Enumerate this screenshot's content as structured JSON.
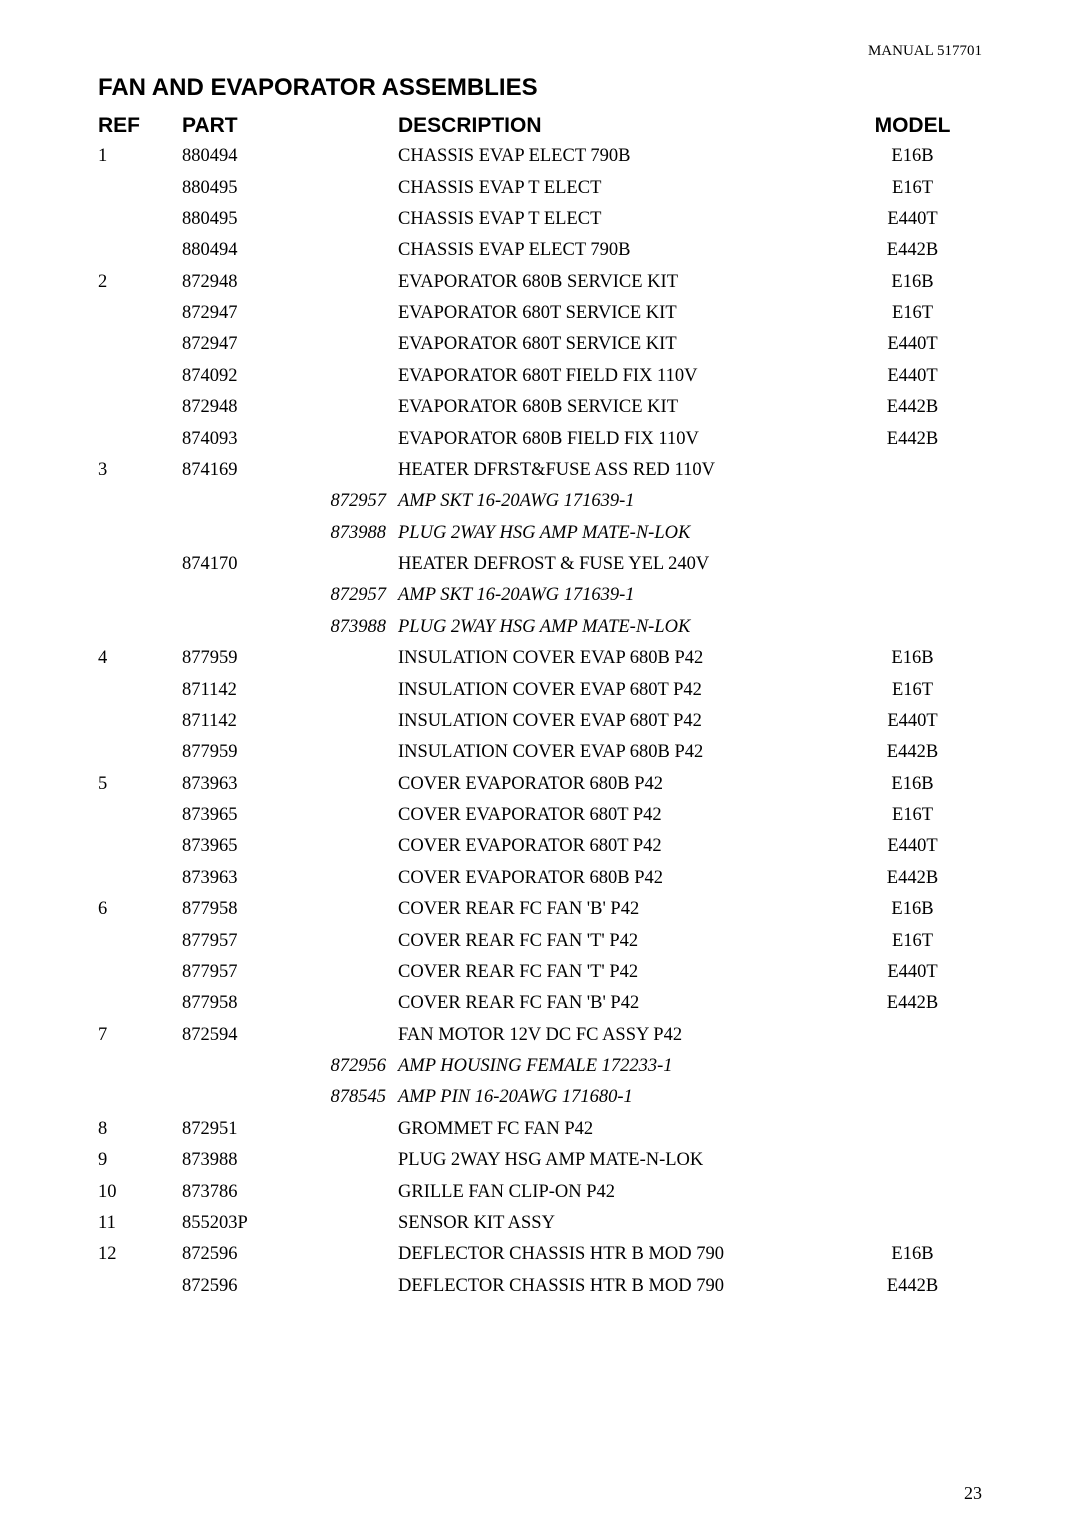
{
  "manual_header": "MANUAL 517701",
  "title": "FAN AND EVAPORATOR ASSEMBLIES",
  "columns": {
    "ref": "REF",
    "part": "PART",
    "desc": "DESCRIPTION",
    "model": "MODEL"
  },
  "page_number": "23",
  "rows": [
    {
      "ref": "1",
      "part": "880494",
      "sub": "",
      "desc": "CHASSIS EVAP ELECT 790B",
      "italic": false,
      "model": "E16B"
    },
    {
      "ref": "",
      "part": "880495",
      "sub": "",
      "desc": "CHASSIS EVAP T ELECT",
      "italic": false,
      "model": "E16T"
    },
    {
      "ref": "",
      "part": "880495",
      "sub": "",
      "desc": "CHASSIS EVAP T ELECT",
      "italic": false,
      "model": "E440T"
    },
    {
      "ref": "",
      "part": "880494",
      "sub": "",
      "desc": "CHASSIS EVAP ELECT 790B",
      "italic": false,
      "model": "E442B"
    },
    {
      "ref": "2",
      "part": "872948",
      "sub": "",
      "desc": "EVAPORATOR 680B SERVICE KIT",
      "italic": false,
      "model": "E16B"
    },
    {
      "ref": "",
      "part": "872947",
      "sub": "",
      "desc": "EVAPORATOR 680T SERVICE KIT",
      "italic": false,
      "model": "E16T"
    },
    {
      "ref": "",
      "part": "872947",
      "sub": "",
      "desc": "EVAPORATOR 680T SERVICE KIT",
      "italic": false,
      "model": "E440T"
    },
    {
      "ref": "",
      "part": "874092",
      "sub": "",
      "desc": "EVAPORATOR 680T FIELD FIX 110V",
      "italic": false,
      "model": "E440T"
    },
    {
      "ref": "",
      "part": "872948",
      "sub": "",
      "desc": "EVAPORATOR 680B SERVICE KIT",
      "italic": false,
      "model": "E442B"
    },
    {
      "ref": "",
      "part": "874093",
      "sub": "",
      "desc": "EVAPORATOR 680B FIELD FIX 110V",
      "italic": false,
      "model": "E442B"
    },
    {
      "ref": "3",
      "part": "874169",
      "sub": "",
      "desc": "HEATER DFRST&FUSE ASS RED 110V",
      "italic": false,
      "model": ""
    },
    {
      "ref": "",
      "part": "",
      "sub": "872957",
      "desc": "AMP SKT 16-20AWG 171639-1",
      "italic": true,
      "model": ""
    },
    {
      "ref": "",
      "part": "",
      "sub": "873988",
      "desc": "PLUG 2WAY HSG AMP MATE-N-LOK",
      "italic": true,
      "model": ""
    },
    {
      "ref": "",
      "part": "874170",
      "sub": "",
      "desc": "HEATER DEFROST & FUSE YEL 240V",
      "italic": false,
      "model": ""
    },
    {
      "ref": "",
      "part": "",
      "sub": "872957",
      "desc": "AMP SKT 16-20AWG 171639-1",
      "italic": true,
      "model": ""
    },
    {
      "ref": "",
      "part": "",
      "sub": "873988",
      "desc": "PLUG 2WAY HSG AMP MATE-N-LOK",
      "italic": true,
      "model": ""
    },
    {
      "ref": "4",
      "part": "877959",
      "sub": "",
      "desc": "INSULATION COVER EVAP 680B P42",
      "italic": false,
      "model": "E16B"
    },
    {
      "ref": "",
      "part": "871142",
      "sub": "",
      "desc": "INSULATION COVER EVAP 680T P42",
      "italic": false,
      "model": "E16T"
    },
    {
      "ref": "",
      "part": "871142",
      "sub": "",
      "desc": "INSULATION COVER EVAP 680T P42",
      "italic": false,
      "model": "E440T"
    },
    {
      "ref": "",
      "part": "877959",
      "sub": "",
      "desc": "INSULATION COVER EVAP 680B P42",
      "italic": false,
      "model": "E442B"
    },
    {
      "ref": "5",
      "part": "873963",
      "sub": "",
      "desc": "COVER EVAPORATOR 680B P42",
      "italic": false,
      "model": "E16B"
    },
    {
      "ref": "",
      "part": "873965",
      "sub": "",
      "desc": "COVER EVAPORATOR 680T P42",
      "italic": false,
      "model": "E16T"
    },
    {
      "ref": "",
      "part": "873965",
      "sub": "",
      "desc": "COVER EVAPORATOR 680T P42",
      "italic": false,
      "model": "E440T"
    },
    {
      "ref": "",
      "part": "873963",
      "sub": "",
      "desc": "COVER EVAPORATOR 680B P42",
      "italic": false,
      "model": "E442B"
    },
    {
      "ref": "6",
      "part": "877958",
      "sub": "",
      "desc": "COVER REAR FC FAN 'B' P42",
      "italic": false,
      "model": "E16B"
    },
    {
      "ref": "",
      "part": "877957",
      "sub": "",
      "desc": "COVER REAR FC FAN 'T' P42",
      "italic": false,
      "model": "E16T"
    },
    {
      "ref": "",
      "part": "877957",
      "sub": "",
      "desc": "COVER REAR FC FAN 'T' P42",
      "italic": false,
      "model": "E440T"
    },
    {
      "ref": "",
      "part": "877958",
      "sub": "",
      "desc": "COVER REAR FC FAN 'B' P42",
      "italic": false,
      "model": "E442B"
    },
    {
      "ref": "7",
      "part": "872594",
      "sub": "",
      "desc": "FAN MOTOR 12V DC FC ASSY P42",
      "italic": false,
      "model": ""
    },
    {
      "ref": "",
      "part": "",
      "sub": "872956",
      "desc": "AMP HOUSING FEMALE 172233-1",
      "italic": true,
      "model": ""
    },
    {
      "ref": "",
      "part": "",
      "sub": "878545",
      "desc": "AMP PIN 16-20AWG 171680-1",
      "italic": true,
      "model": ""
    },
    {
      "ref": "8",
      "part": "872951",
      "sub": "",
      "desc": "GROMMET FC FAN P42",
      "italic": false,
      "model": ""
    },
    {
      "ref": "9",
      "part": "873988",
      "sub": "",
      "desc": "PLUG 2WAY HSG AMP MATE-N-LOK",
      "italic": false,
      "model": ""
    },
    {
      "ref": "10",
      "part": "873786",
      "sub": "",
      "desc": "GRILLE FAN CLIP-ON P42",
      "italic": false,
      "model": ""
    },
    {
      "ref": "11",
      "part": "855203P",
      "sub": "",
      "desc": "SENSOR KIT ASSY",
      "italic": false,
      "model": ""
    },
    {
      "ref": "12",
      "part": "872596",
      "sub": "",
      "desc": "DEFLECTOR CHASSIS HTR B MOD 790",
      "italic": false,
      "model": "E16B"
    },
    {
      "ref": "",
      "part": "872596",
      "sub": "",
      "desc": "DEFLECTOR CHASSIS HTR B MOD 790",
      "italic": false,
      "model": "E442B"
    }
  ]
}
